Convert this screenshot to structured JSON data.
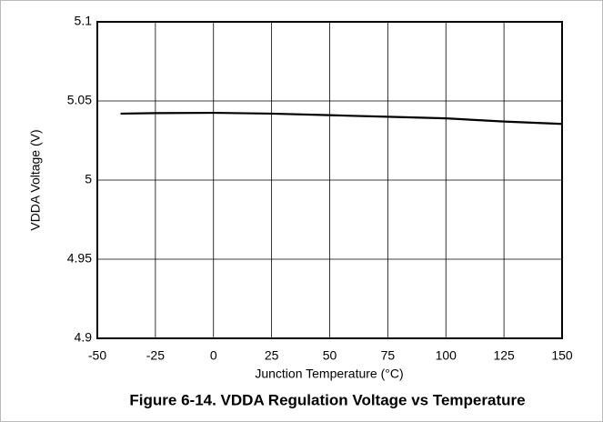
{
  "chart_data": {
    "type": "line",
    "caption": "Figure 6-14. VDDA Regulation Voltage vs Temperature",
    "xlabel": "Junction Temperature (°C)",
    "ylabel": "VDDA Voltage (V)",
    "x": [
      -40,
      -25,
      0,
      25,
      50,
      75,
      100,
      125,
      150
    ],
    "values": [
      5.042,
      5.0423,
      5.0425,
      5.042,
      5.041,
      5.04,
      5.039,
      5.037,
      5.0355
    ],
    "color": "#000000",
    "xlim": [
      -50,
      150
    ],
    "xticks": [
      -50,
      -25,
      0,
      25,
      50,
      75,
      100,
      125,
      150
    ],
    "ylim": [
      4.9,
      5.1
    ],
    "yticks": [
      4.9,
      4.95,
      5,
      5.05,
      5.1
    ],
    "grid": true
  }
}
